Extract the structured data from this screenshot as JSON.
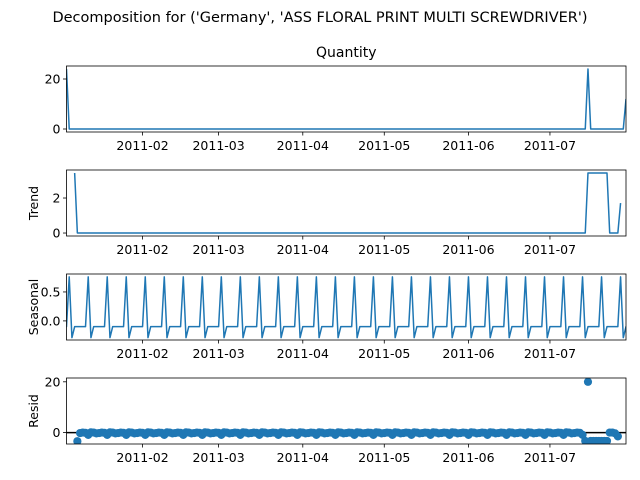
{
  "chart_data": {
    "title": "Decomposition for ('Germany', 'ASS FLORAL PRINT MULTI SCREWDRIVER')",
    "series_color": "#1f77b4",
    "x_start": "2011-01-04",
    "x_end": "2011-07-29",
    "x_ticks": [
      {
        "date": "2011-02-01",
        "label": "2011-02"
      },
      {
        "date": "2011-03-01",
        "label": "2011-03"
      },
      {
        "date": "2011-04-01",
        "label": "2011-04"
      },
      {
        "date": "2011-05-01",
        "label": "2011-05"
      },
      {
        "date": "2011-06-01",
        "label": "2011-06"
      },
      {
        "date": "2011-07-01",
        "label": "2011-07"
      }
    ],
    "panels": [
      {
        "key": "observed",
        "type": "line",
        "title": "Quantity",
        "ylabel": "",
        "ylim": [
          -1.2,
          25.2
        ],
        "yticks": [
          {
            "value": 0,
            "label": "0"
          },
          {
            "value": 20,
            "label": "20"
          }
        ],
        "points": [
          [
            "2011-01-04",
            24
          ],
          [
            "2011-01-05",
            0
          ],
          [
            "2011-07-14",
            0
          ],
          [
            "2011-07-15",
            24
          ],
          [
            "2011-07-16",
            0
          ],
          [
            "2011-07-28",
            0
          ],
          [
            "2011-07-29",
            12
          ]
        ]
      },
      {
        "key": "trend",
        "type": "line",
        "title": "",
        "ylabel": "Trend",
        "ylim": [
          -0.17,
          3.6
        ],
        "yticks": [
          {
            "value": 0,
            "label": "0"
          },
          {
            "value": 2,
            "label": "2"
          }
        ],
        "points": [
          [
            "2011-01-07",
            3.43
          ],
          [
            "2011-01-08",
            0
          ],
          [
            "2011-07-14",
            0
          ],
          [
            "2011-07-15",
            3.43
          ],
          [
            "2011-07-22",
            3.43
          ],
          [
            "2011-07-23",
            0
          ],
          [
            "2011-07-26",
            0
          ],
          [
            "2011-07-27",
            1.71
          ]
        ]
      },
      {
        "key": "seasonal",
        "type": "line",
        "title": "",
        "ylabel": "Seasonal",
        "ylim": [
          -0.33,
          0.81
        ],
        "yticks": [
          {
            "value": 0.0,
            "label": "0.0"
          },
          {
            "value": 0.5,
            "label": "0.5"
          }
        ],
        "period_days": 7,
        "first_peak": "2011-01-05",
        "pattern": [
          0.76,
          -0.29,
          -0.1,
          -0.1,
          -0.1,
          -0.1,
          -0.1
        ]
      },
      {
        "key": "resid",
        "type": "scatter",
        "title": "",
        "ylabel": "Resid",
        "ylim": [
          -4.5,
          21.5
        ],
        "yticks": [
          {
            "value": 0,
            "label": "0"
          },
          {
            "value": 20,
            "label": "20"
          }
        ],
        "baseline": 0,
        "points": [
          [
            "2011-01-08",
            -3.4
          ],
          [
            "2011-01-09",
            -0.2
          ],
          [
            "2011-01-10",
            0.0
          ],
          [
            "2011-01-11",
            -0.1
          ],
          [
            "2011-01-12",
            -0.9
          ],
          [
            "2011-01-13",
            0.1
          ],
          [
            "2011-01-14",
            0.0
          ],
          [
            "2011-01-15",
            -0.3
          ],
          [
            "2011-01-16",
            -0.2
          ],
          [
            "2011-01-17",
            0.0
          ],
          [
            "2011-01-18",
            -0.1
          ],
          [
            "2011-01-19",
            -0.9
          ],
          [
            "2011-01-20",
            0.1
          ],
          [
            "2011-01-21",
            0.0
          ],
          [
            "2011-01-22",
            -0.3
          ],
          [
            "2011-01-23",
            -0.2
          ],
          [
            "2011-01-24",
            0.0
          ],
          [
            "2011-01-25",
            -0.1
          ],
          [
            "2011-01-26",
            -0.9
          ],
          [
            "2011-01-27",
            0.1
          ],
          [
            "2011-01-28",
            0.0
          ],
          [
            "2011-01-29",
            -0.3
          ],
          [
            "2011-01-30",
            -0.2
          ],
          [
            "2011-01-31",
            0.0
          ],
          [
            "2011-02-01",
            -0.1
          ],
          [
            "2011-02-02",
            -0.9
          ],
          [
            "2011-02-03",
            0.1
          ],
          [
            "2011-02-04",
            0.0
          ],
          [
            "2011-02-05",
            -0.3
          ],
          [
            "2011-02-06",
            -0.2
          ],
          [
            "2011-02-07",
            0.0
          ],
          [
            "2011-02-08",
            -0.1
          ],
          [
            "2011-02-09",
            -0.9
          ],
          [
            "2011-02-10",
            0.1
          ],
          [
            "2011-02-11",
            0.0
          ],
          [
            "2011-02-12",
            -0.3
          ],
          [
            "2011-02-13",
            -0.2
          ],
          [
            "2011-02-14",
            0.0
          ],
          [
            "2011-02-15",
            -0.1
          ],
          [
            "2011-02-16",
            -0.9
          ],
          [
            "2011-02-17",
            0.1
          ],
          [
            "2011-02-18",
            0.0
          ],
          [
            "2011-02-19",
            -0.3
          ],
          [
            "2011-02-20",
            -0.2
          ],
          [
            "2011-02-21",
            0.0
          ],
          [
            "2011-02-22",
            -0.1
          ],
          [
            "2011-02-23",
            -0.9
          ],
          [
            "2011-02-24",
            0.1
          ],
          [
            "2011-02-25",
            0.0
          ],
          [
            "2011-02-26",
            -0.3
          ],
          [
            "2011-02-27",
            -0.2
          ],
          [
            "2011-02-28",
            0.0
          ],
          [
            "2011-03-01",
            -0.1
          ],
          [
            "2011-03-02",
            -0.9
          ],
          [
            "2011-03-03",
            0.1
          ],
          [
            "2011-03-04",
            0.0
          ],
          [
            "2011-03-05",
            -0.3
          ],
          [
            "2011-03-06",
            -0.2
          ],
          [
            "2011-03-07",
            0.0
          ],
          [
            "2011-03-08",
            -0.1
          ],
          [
            "2011-03-09",
            -0.9
          ],
          [
            "2011-03-10",
            0.1
          ],
          [
            "2011-03-11",
            0.0
          ],
          [
            "2011-03-12",
            -0.3
          ],
          [
            "2011-03-13",
            -0.2
          ],
          [
            "2011-03-14",
            0.0
          ],
          [
            "2011-03-15",
            -0.1
          ],
          [
            "2011-03-16",
            -0.9
          ],
          [
            "2011-03-17",
            0.1
          ],
          [
            "2011-03-18",
            0.0
          ],
          [
            "2011-03-19",
            -0.3
          ],
          [
            "2011-03-20",
            -0.2
          ],
          [
            "2011-03-21",
            0.0
          ],
          [
            "2011-03-22",
            -0.1
          ],
          [
            "2011-03-23",
            -0.9
          ],
          [
            "2011-03-24",
            0.1
          ],
          [
            "2011-03-25",
            0.0
          ],
          [
            "2011-03-26",
            -0.3
          ],
          [
            "2011-03-27",
            -0.2
          ],
          [
            "2011-03-28",
            0.0
          ],
          [
            "2011-03-29",
            -0.1
          ],
          [
            "2011-03-30",
            -0.9
          ],
          [
            "2011-03-31",
            0.1
          ],
          [
            "2011-04-01",
            0.0
          ],
          [
            "2011-04-02",
            -0.3
          ],
          [
            "2011-04-03",
            -0.2
          ],
          [
            "2011-04-04",
            0.0
          ],
          [
            "2011-04-05",
            -0.1
          ],
          [
            "2011-04-06",
            -0.9
          ],
          [
            "2011-04-07",
            0.1
          ],
          [
            "2011-04-08",
            0.0
          ],
          [
            "2011-04-09",
            -0.3
          ],
          [
            "2011-04-10",
            -0.2
          ],
          [
            "2011-04-11",
            0.0
          ],
          [
            "2011-04-12",
            -0.1
          ],
          [
            "2011-04-13",
            -0.9
          ],
          [
            "2011-04-14",
            0.1
          ],
          [
            "2011-04-15",
            0.0
          ],
          [
            "2011-04-16",
            -0.3
          ],
          [
            "2011-04-17",
            -0.2
          ],
          [
            "2011-04-18",
            0.0
          ],
          [
            "2011-04-19",
            -0.1
          ],
          [
            "2011-04-20",
            -0.9
          ],
          [
            "2011-04-21",
            0.1
          ],
          [
            "2011-04-22",
            0.0
          ],
          [
            "2011-04-23",
            -0.3
          ],
          [
            "2011-04-24",
            -0.2
          ],
          [
            "2011-04-25",
            0.0
          ],
          [
            "2011-04-26",
            -0.1
          ],
          [
            "2011-04-27",
            -0.9
          ],
          [
            "2011-04-28",
            0.1
          ],
          [
            "2011-04-29",
            0.0
          ],
          [
            "2011-04-30",
            -0.3
          ],
          [
            "2011-05-01",
            -0.2
          ],
          [
            "2011-05-02",
            0.0
          ],
          [
            "2011-05-03",
            -0.1
          ],
          [
            "2011-05-04",
            -0.9
          ],
          [
            "2011-05-05",
            0.1
          ],
          [
            "2011-05-06",
            0.0
          ],
          [
            "2011-05-07",
            -0.3
          ],
          [
            "2011-05-08",
            -0.2
          ],
          [
            "2011-05-09",
            0.0
          ],
          [
            "2011-05-10",
            -0.1
          ],
          [
            "2011-05-11",
            -0.9
          ],
          [
            "2011-05-12",
            0.1
          ],
          [
            "2011-05-13",
            0.0
          ],
          [
            "2011-05-14",
            -0.3
          ],
          [
            "2011-05-15",
            -0.2
          ],
          [
            "2011-05-16",
            0.0
          ],
          [
            "2011-05-17",
            -0.1
          ],
          [
            "2011-05-18",
            -0.9
          ],
          [
            "2011-05-19",
            0.1
          ],
          [
            "2011-05-20",
            0.0
          ],
          [
            "2011-05-21",
            -0.3
          ],
          [
            "2011-05-22",
            -0.2
          ],
          [
            "2011-05-23",
            0.0
          ],
          [
            "2011-05-24",
            -0.1
          ],
          [
            "2011-05-25",
            -0.9
          ],
          [
            "2011-05-26",
            0.1
          ],
          [
            "2011-05-27",
            0.0
          ],
          [
            "2011-05-28",
            -0.3
          ],
          [
            "2011-05-29",
            -0.2
          ],
          [
            "2011-05-30",
            0.0
          ],
          [
            "2011-05-31",
            -0.1
          ],
          [
            "2011-06-01",
            -0.9
          ],
          [
            "2011-06-02",
            0.1
          ],
          [
            "2011-06-03",
            0.0
          ],
          [
            "2011-06-04",
            -0.3
          ],
          [
            "2011-06-05",
            -0.2
          ],
          [
            "2011-06-06",
            0.0
          ],
          [
            "2011-06-07",
            -0.1
          ],
          [
            "2011-06-08",
            -0.9
          ],
          [
            "2011-06-09",
            0.1
          ],
          [
            "2011-06-10",
            0.0
          ],
          [
            "2011-06-11",
            -0.3
          ],
          [
            "2011-06-12",
            -0.2
          ],
          [
            "2011-06-13",
            0.0
          ],
          [
            "2011-06-14",
            -0.1
          ],
          [
            "2011-06-15",
            -0.9
          ],
          [
            "2011-06-16",
            0.1
          ],
          [
            "2011-06-17",
            0.0
          ],
          [
            "2011-06-18",
            -0.3
          ],
          [
            "2011-06-19",
            -0.2
          ],
          [
            "2011-06-20",
            0.0
          ],
          [
            "2011-06-21",
            -0.1
          ],
          [
            "2011-06-22",
            -0.9
          ],
          [
            "2011-06-23",
            0.1
          ],
          [
            "2011-06-24",
            0.0
          ],
          [
            "2011-06-25",
            -0.3
          ],
          [
            "2011-06-26",
            -0.2
          ],
          [
            "2011-06-27",
            0.0
          ],
          [
            "2011-06-28",
            -0.1
          ],
          [
            "2011-06-29",
            -0.9
          ],
          [
            "2011-06-30",
            0.1
          ],
          [
            "2011-07-01",
            0.0
          ],
          [
            "2011-07-02",
            -0.3
          ],
          [
            "2011-07-03",
            -0.2
          ],
          [
            "2011-07-04",
            0.0
          ],
          [
            "2011-07-05",
            -0.1
          ],
          [
            "2011-07-06",
            -0.9
          ],
          [
            "2011-07-07",
            0.1
          ],
          [
            "2011-07-08",
            0.0
          ],
          [
            "2011-07-09",
            -0.3
          ],
          [
            "2011-07-10",
            -0.2
          ],
          [
            "2011-07-11",
            0.0
          ],
          [
            "2011-07-12",
            -0.1
          ],
          [
            "2011-07-13",
            -0.9
          ],
          [
            "2011-07-14",
            -3.3
          ],
          [
            "2011-07-15",
            20.0
          ],
          [
            "2011-07-16",
            -3.3
          ],
          [
            "2011-07-17",
            -3.3
          ],
          [
            "2011-07-18",
            -3.3
          ],
          [
            "2011-07-19",
            -3.3
          ],
          [
            "2011-07-20",
            -3.3
          ],
          [
            "2011-07-21",
            -3.3
          ],
          [
            "2011-07-22",
            -3.3
          ],
          [
            "2011-07-23",
            0.0
          ],
          [
            "2011-07-24",
            0.0
          ],
          [
            "2011-07-25",
            -0.3
          ],
          [
            "2011-07-26",
            -1.5
          ]
        ]
      }
    ]
  }
}
